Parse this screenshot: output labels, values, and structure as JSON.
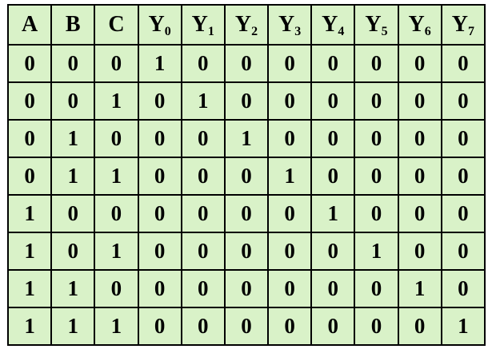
{
  "table": {
    "headers": [
      {
        "main": "A",
        "sub": ""
      },
      {
        "main": "B",
        "sub": ""
      },
      {
        "main": "C",
        "sub": ""
      },
      {
        "main": "Y",
        "sub": "0"
      },
      {
        "main": "Y",
        "sub": "1"
      },
      {
        "main": "Y",
        "sub": "2"
      },
      {
        "main": "Y",
        "sub": "3"
      },
      {
        "main": "Y",
        "sub": "4"
      },
      {
        "main": "Y",
        "sub": "5"
      },
      {
        "main": "Y",
        "sub": "6"
      },
      {
        "main": "Y",
        "sub": "7"
      }
    ],
    "rows": [
      [
        "0",
        "0",
        "0",
        "1",
        "0",
        "0",
        "0",
        "0",
        "0",
        "0",
        "0"
      ],
      [
        "0",
        "0",
        "1",
        "0",
        "1",
        "0",
        "0",
        "0",
        "0",
        "0",
        "0"
      ],
      [
        "0",
        "1",
        "0",
        "0",
        "0",
        "1",
        "0",
        "0",
        "0",
        "0",
        "0"
      ],
      [
        "0",
        "1",
        "1",
        "0",
        "0",
        "0",
        "1",
        "0",
        "0",
        "0",
        "0"
      ],
      [
        "1",
        "0",
        "0",
        "0",
        "0",
        "0",
        "0",
        "1",
        "0",
        "0",
        "0"
      ],
      [
        "1",
        "0",
        "1",
        "0",
        "0",
        "0",
        "0",
        "0",
        "1",
        "0",
        "0"
      ],
      [
        "1",
        "1",
        "0",
        "0",
        "0",
        "0",
        "0",
        "0",
        "0",
        "1",
        "0"
      ],
      [
        "1",
        "1",
        "1",
        "0",
        "0",
        "0",
        "0",
        "0",
        "0",
        "0",
        "1"
      ]
    ],
    "colors": {
      "background": "#d9f2c8",
      "border": "#000000",
      "text": "#000000"
    }
  }
}
